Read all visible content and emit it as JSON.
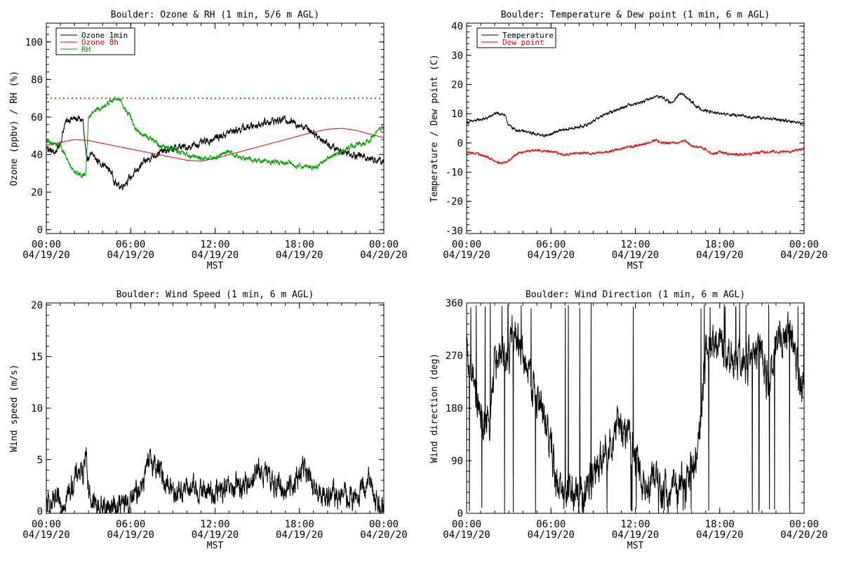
{
  "chart_data": [
    {
      "type": "line",
      "title": "Boulder: Ozone & RH (1 min, 5/6 m AGL)",
      "xlabel": "MST",
      "ylabel": "Ozone (ppbv) / RH (%)",
      "x_ticks": [
        {
          "time": "00:00",
          "date": "04/19/20",
          "hour": 0
        },
        {
          "time": "06:00",
          "date": "04/19/20",
          "hour": 6
        },
        {
          "time": "12:00",
          "date": "04/19/20",
          "hour": 12
        },
        {
          "time": "18:00",
          "date": "04/19/20",
          "hour": 18
        },
        {
          "time": "00:00",
          "date": "04/20/20",
          "hour": 24
        }
      ],
      "xlim": [
        0,
        24
      ],
      "ylim": [
        -2,
        110
      ],
      "y_ticks": [
        0,
        20,
        40,
        60,
        80,
        100
      ],
      "reference_line": {
        "y": 70,
        "color": "#e00000",
        "style": "dotted"
      },
      "legend": {
        "position": "top-left",
        "entries": [
          {
            "label": "Ozone 1min",
            "color": "#000000"
          },
          {
            "label": "Ozone 8h",
            "color": "#e00000"
          },
          {
            "label": "RH",
            "color": "#00a000"
          }
        ]
      },
      "series": [
        {
          "name": "Ozone 1min",
          "color": "#000000",
          "noise": 1.5,
          "x": [
            0,
            0.3,
            0.6,
            1,
            1.3,
            1.6,
            2,
            2.3,
            2.6,
            2.8,
            3,
            3.3,
            3.6,
            4,
            4.3,
            4.6,
            4.8,
            5,
            5.3,
            5.6,
            6,
            6.3,
            6.6,
            7,
            7.5,
            8,
            8.5,
            9,
            9.5,
            10,
            10.5,
            11,
            11.5,
            12,
            12.5,
            13,
            13.5,
            14,
            14.5,
            15,
            15.5,
            16,
            16.5,
            17,
            17.3,
            17.6,
            18,
            18.3,
            18.6,
            19,
            19.3,
            19.6,
            20,
            20.3,
            20.6,
            21,
            21.5,
            22,
            22.5,
            23,
            23.5,
            24
          ],
          "y": [
            44,
            42,
            41,
            46,
            56,
            59,
            59,
            59,
            58,
            40,
            38,
            40,
            37,
            35,
            33,
            31,
            27,
            24,
            23,
            25,
            28,
            30,
            33,
            36,
            39,
            41,
            42,
            43,
            44,
            44,
            45,
            46,
            47,
            49,
            50,
            52,
            53,
            54,
            55,
            56,
            57,
            58,
            58,
            59,
            58,
            57,
            56,
            55,
            54,
            52,
            50,
            48,
            46,
            44,
            43,
            42,
            41,
            40,
            39,
            38,
            37,
            36
          ]
        },
        {
          "name": "Ozone 8h",
          "color": "#e00000",
          "noise": 0,
          "x": [
            0,
            1,
            2,
            3,
            4,
            5,
            6,
            7,
            8,
            9,
            10,
            11,
            12,
            13,
            14,
            15,
            16,
            17,
            18,
            19,
            20,
            21,
            22,
            23,
            24
          ],
          "y": [
            45,
            46.5,
            48,
            47.5,
            46,
            44.5,
            43,
            41.5,
            40,
            38.5,
            37,
            36.5,
            38,
            40,
            42,
            44,
            46,
            48,
            50,
            52,
            53.5,
            54,
            53,
            51,
            49
          ]
        },
        {
          "name": "RH",
          "color": "#00a000",
          "noise": 1.0,
          "x": [
            0,
            0.5,
            1,
            1.5,
            2,
            2.5,
            2.8,
            3,
            3.3,
            3.6,
            4,
            4.5,
            5,
            5.3,
            5.6,
            6,
            6.3,
            6.6,
            7,
            7.5,
            8,
            9,
            10,
            11,
            12,
            12.5,
            13,
            13.5,
            14,
            15,
            16,
            17,
            18,
            19,
            19.5,
            20,
            20.5,
            21,
            21.5,
            22,
            22.5,
            23,
            23.5,
            24
          ],
          "y": [
            47,
            46,
            45,
            37,
            31,
            29,
            30,
            60,
            62,
            64,
            65,
            68,
            70,
            69,
            64,
            60,
            54,
            52,
            50,
            48,
            45,
            43,
            40,
            38,
            38,
            40,
            42,
            39,
            38,
            37,
            36,
            36,
            34,
            33,
            35,
            38,
            40,
            41,
            44,
            45,
            46,
            48,
            52,
            55
          ]
        }
      ]
    },
    {
      "type": "line",
      "title": "Boulder: Temperature & Dew point (1 min, 6 m AGL)",
      "xlabel": "MST",
      "ylabel": "Temperature / Dew point (C)",
      "x_ticks": [
        {
          "time": "00:00",
          "date": "04/19/20",
          "hour": 0
        },
        {
          "time": "06:00",
          "date": "04/19/20",
          "hour": 6
        },
        {
          "time": "12:00",
          "date": "04/19/20",
          "hour": 12
        },
        {
          "time": "18:00",
          "date": "04/19/20",
          "hour": 18
        },
        {
          "time": "00:00",
          "date": "04/20/20",
          "hour": 24
        }
      ],
      "xlim": [
        0,
        24
      ],
      "ylim": [
        -31,
        41
      ],
      "y_ticks": [
        -30,
        -20,
        -10,
        0,
        10,
        20,
        30,
        40
      ],
      "legend": {
        "position": "top-left",
        "entries": [
          {
            "label": "Temperature",
            "color": "#000000"
          },
          {
            "label": "Dew point",
            "color": "#e00000"
          }
        ]
      },
      "series": [
        {
          "name": "Temperature",
          "color": "#000000",
          "noise": 0.35,
          "x": [
            0,
            0.5,
            1,
            1.5,
            2,
            2.5,
            2.7,
            3,
            3.5,
            4,
            4.5,
            5,
            5.5,
            6,
            6.5,
            7,
            7.5,
            8,
            8.5,
            9,
            9.5,
            10,
            10.5,
            11,
            11.5,
            12,
            12.5,
            13,
            13.5,
            14,
            14.5,
            15,
            15.3,
            15.5,
            16,
            16.5,
            17,
            18,
            19,
            20,
            21,
            22,
            23,
            24
          ],
          "y": [
            7,
            7.5,
            8,
            8.5,
            10,
            10,
            9.5,
            6,
            4.5,
            4,
            3.5,
            3,
            2.5,
            3,
            4,
            4.5,
            5,
            5.5,
            6,
            7.5,
            9,
            10,
            11,
            12,
            13,
            13.5,
            14,
            15,
            16,
            15.5,
            13.5,
            16,
            17,
            16,
            14,
            12,
            11,
            10,
            9.5,
            9,
            8.5,
            8,
            7.5,
            6.5
          ]
        },
        {
          "name": "Dew point",
          "color": "#e00000",
          "noise": 0.3,
          "x": [
            0,
            1,
            2,
            2.5,
            3,
            3.5,
            4,
            5,
            6,
            7,
            8,
            9,
            10,
            11,
            12,
            13,
            13.5,
            14,
            15,
            15.5,
            16,
            17,
            17.5,
            18,
            19,
            20,
            21,
            22,
            23,
            24
          ],
          "y": [
            -3,
            -4,
            -6,
            -7,
            -6,
            -4,
            -3,
            -2.5,
            -3,
            -4,
            -3.5,
            -3.5,
            -3,
            -2,
            -1,
            0,
            1,
            0,
            0,
            1,
            -1,
            -2,
            -4,
            -3,
            -4,
            -4,
            -3,
            -3,
            -3,
            -2
          ]
        }
      ]
    },
    {
      "type": "line",
      "title": "Boulder: Wind Speed (1 min, 6 m AGL)",
      "xlabel": "MST",
      "ylabel": "Wind speed (m/s)",
      "x_ticks": [
        {
          "time": "00:00",
          "date": "04/19/20",
          "hour": 0
        },
        {
          "time": "06:00",
          "date": "04/19/20",
          "hour": 6
        },
        {
          "time": "12:00",
          "date": "04/19/20",
          "hour": 12
        },
        {
          "time": "18:00",
          "date": "04/19/20",
          "hour": 18
        },
        {
          "time": "00:00",
          "date": "04/20/20",
          "hour": 24
        }
      ],
      "xlim": [
        0,
        24
      ],
      "ylim": [
        -0.2,
        20.2
      ],
      "y_ticks": [
        0,
        5,
        10,
        15,
        20
      ],
      "series": [
        {
          "name": "Wind speed",
          "color": "#000000",
          "noise": 0.9,
          "x": [
            0,
            0.5,
            1,
            1.5,
            2,
            2.3,
            2.6,
            2.8,
            3,
            3.3,
            3.6,
            4,
            5,
            6,
            6.5,
            7,
            7.5,
            8,
            9,
            10,
            11,
            12,
            13,
            14,
            14.5,
            15,
            16,
            16.5,
            17,
            18,
            18.3,
            18.7,
            19,
            20,
            21,
            22,
            22.5,
            23,
            23.5,
            24
          ],
          "y": [
            0.5,
            0.6,
            0.8,
            1.5,
            3,
            4,
            3.5,
            6.5,
            2,
            0.8,
            0.5,
            0.4,
            0.5,
            0.8,
            2,
            3.5,
            5,
            4,
            2,
            2.2,
            2,
            1.8,
            2,
            2.5,
            3,
            4,
            3,
            2.5,
            2,
            3.5,
            4.5,
            3,
            2,
            1.5,
            1.5,
            1.2,
            2,
            3,
            1,
            0.5
          ]
        }
      ]
    },
    {
      "type": "line",
      "title": "Boulder: Wind Direction (1 min, 6 m AGL)",
      "xlabel": "MST",
      "ylabel": "Wind direction (deg)",
      "x_ticks": [
        {
          "time": "00:00",
          "date": "04/19/20",
          "hour": 0
        },
        {
          "time": "06:00",
          "date": "04/19/20",
          "hour": 6
        },
        {
          "time": "12:00",
          "date": "04/19/20",
          "hour": 12
        },
        {
          "time": "18:00",
          "date": "04/19/20",
          "hour": 18
        },
        {
          "time": "00:00",
          "date": "04/20/20",
          "hour": 24
        }
      ],
      "xlim": [
        0,
        24
      ],
      "ylim": [
        0,
        360
      ],
      "y_ticks": [
        0,
        90,
        180,
        270,
        360
      ],
      "series": [
        {
          "name": "Wind direction",
          "color": "#000000",
          "noise": 25,
          "spikes": true,
          "x": [
            0,
            0.3,
            0.6,
            1,
            1.3,
            1.6,
            2,
            2.5,
            3,
            3.3,
            3.6,
            4,
            4.3,
            4.6,
            5,
            5.5,
            6,
            6.3,
            6.6,
            7,
            7.5,
            8,
            8.5,
            9,
            9.5,
            10,
            10.5,
            11,
            11.5,
            12,
            12.5,
            13,
            13.5,
            14,
            14.5,
            15,
            15.5,
            16,
            16.5,
            17,
            17.5,
            18,
            18.5,
            19,
            19.5,
            20,
            20.5,
            21,
            21.5,
            22,
            22.5,
            23,
            23.5,
            24
          ],
          "y": [
            270,
            240,
            200,
            160,
            150,
            140,
            265,
            258,
            262,
            320,
            300,
            270,
            240,
            220,
            200,
            160,
            120,
            60,
            40,
            30,
            35,
            30,
            40,
            60,
            80,
            110,
            130,
            150,
            140,
            90,
            60,
            50,
            45,
            40,
            35,
            45,
            60,
            80,
            110,
            280,
            290,
            300,
            270,
            260,
            250,
            260,
            280,
            270,
            220,
            280,
            300,
            310,
            240,
            220
          ]
        }
      ]
    }
  ]
}
